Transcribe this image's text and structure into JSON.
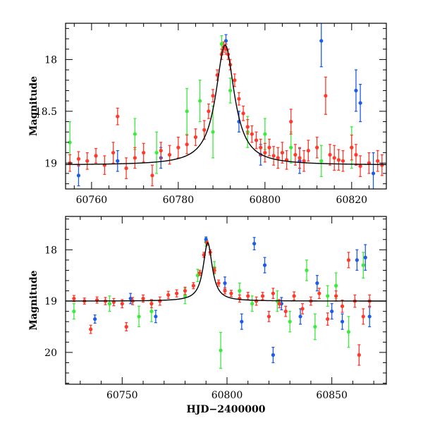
{
  "colors": {
    "red": "#ff3a2a",
    "green": "#3dea3d",
    "blue": "#1d5ce6",
    "model": "#000000"
  },
  "chart_data": [
    {
      "type": "scatter",
      "panel": "top",
      "xlabel": "",
      "ylabel": "Magnitude",
      "xlim": [
        60754,
        60828
      ],
      "ylim": [
        19.25,
        17.65
      ],
      "y_inverted": true,
      "x_ticks": [
        60760,
        60780,
        60800,
        60820
      ],
      "x_tick_labels": [
        "60760",
        "60780",
        "60800",
        "60820"
      ],
      "y_ticks": [
        18,
        18.5,
        19
      ],
      "y_tick_labels": [
        "18",
        "18.5",
        "19"
      ],
      "model": {
        "type": "lorentzian-peak",
        "baseline": 19.02,
        "peak_x": 60790.8,
        "peak_mag": 17.86,
        "width_days": 2.6
      },
      "series": [
        {
          "color": "#ff3a2a",
          "points": [
            [
              60755,
              19.0,
              0.08
            ],
            [
              60757,
              18.96,
              0.07
            ],
            [
              60759,
              18.98,
              0.08
            ],
            [
              60761,
              18.93,
              0.07
            ],
            [
              60763,
              19.02,
              0.09
            ],
            [
              60765,
              18.9,
              0.1
            ],
            [
              60766,
              18.55,
              0.08
            ],
            [
              60768,
              19.05,
              0.1
            ],
            [
              60770,
              18.95,
              0.1
            ],
            [
              60772,
              18.9,
              0.09
            ],
            [
              60774,
              19.12,
              0.1
            ],
            [
              60776,
              18.88,
              0.08
            ],
            [
              60778,
              18.92,
              0.09
            ],
            [
              60780,
              18.85,
              0.1
            ],
            [
              60782,
              18.82,
              0.09
            ],
            [
              60784,
              18.75,
              0.08
            ],
            [
              60786,
              18.68,
              0.09
            ],
            [
              60787,
              18.5,
              0.07
            ],
            [
              60788,
              18.35,
              0.06
            ],
            [
              60789,
              18.15,
              0.05
            ],
            [
              60790,
              17.95,
              0.05
            ],
            [
              60790.5,
              17.88,
              0.05
            ],
            [
              60791,
              17.9,
              0.05
            ],
            [
              60791.5,
              17.95,
              0.05
            ],
            [
              60792,
              18.05,
              0.05
            ],
            [
              60793,
              18.2,
              0.06
            ],
            [
              60794,
              18.38,
              0.06
            ],
            [
              60795,
              18.52,
              0.07
            ],
            [
              60796,
              18.65,
              0.07
            ],
            [
              60797,
              18.72,
              0.08
            ],
            [
              60798,
              18.78,
              0.08
            ],
            [
              60799,
              18.85,
              0.08
            ],
            [
              60800,
              18.9,
              0.09
            ],
            [
              60801,
              18.85,
              0.08
            ],
            [
              60802,
              18.93,
              0.09
            ],
            [
              60803,
              18.95,
              0.1
            ],
            [
              60804,
              18.9,
              0.1
            ],
            [
              60805,
              18.97,
              0.09
            ],
            [
              60806,
              18.6,
              0.12
            ],
            [
              60807,
              18.92,
              0.1
            ],
            [
              60808,
              18.95,
              0.1
            ],
            [
              60809,
              18.98,
              0.1
            ],
            [
              60810,
              18.88,
              0.1
            ],
            [
              60812,
              18.85,
              0.1
            ],
            [
              60814,
              18.35,
              0.18
            ],
            [
              60815,
              18.92,
              0.1
            ],
            [
              60816,
              18.95,
              0.12
            ],
            [
              60817,
              18.97,
              0.1
            ],
            [
              60818,
              18.98,
              0.1
            ],
            [
              60820,
              18.85,
              0.12
            ],
            [
              60821,
              18.92,
              0.1
            ],
            [
              60822,
              19.03,
              0.1
            ],
            [
              60824,
              19.0,
              0.1
            ],
            [
              60826,
              18.98,
              0.1
            ],
            [
              60827,
              19.02,
              0.1
            ]
          ]
        },
        {
          "color": "#3dea3d",
          "points": [
            [
              60755,
              18.8,
              0.2
            ],
            [
              60770,
              18.72,
              0.15
            ],
            [
              60775,
              18.9,
              0.2
            ],
            [
              60782,
              18.5,
              0.22
            ],
            [
              60785,
              18.4,
              0.2
            ],
            [
              60788,
              18.7,
              0.25
            ],
            [
              60790,
              17.85,
              0.08
            ],
            [
              60792,
              18.3,
              0.12
            ],
            [
              60796,
              18.7,
              0.15
            ],
            [
              60800,
              18.72,
              0.15
            ],
            [
              60806,
              18.85,
              0.15
            ],
            [
              60813,
              18.98,
              0.15
            ],
            [
              60820,
              18.85,
              0.2
            ]
          ]
        },
        {
          "color": "#1d5ce6",
          "points": [
            [
              60757,
              19.12,
              0.1
            ],
            [
              60766,
              18.98,
              0.1
            ],
            [
              60776,
              18.95,
              0.1
            ],
            [
              60791,
              17.82,
              0.06
            ],
            [
              60794,
              18.6,
              0.1
            ],
            [
              60799,
              18.92,
              0.1
            ],
            [
              60808,
              18.98,
              0.12
            ],
            [
              60813,
              17.82,
              0.25
            ],
            [
              60821,
              18.3,
              0.2
            ],
            [
              60822,
              18.42,
              0.18
            ],
            [
              60825,
              19.1,
              0.2
            ]
          ]
        }
      ]
    },
    {
      "type": "scatter",
      "panel": "bottom",
      "xlabel": "HJD−2400000",
      "ylabel": "Magnitude",
      "xlim": [
        60723,
        60876
      ],
      "ylim": [
        20.62,
        17.35
      ],
      "y_inverted": true,
      "x_ticks": [
        60750,
        60800,
        60850
      ],
      "x_tick_labels": [
        "60750",
        "60800",
        "60850"
      ],
      "y_ticks": [
        18,
        19,
        20
      ],
      "y_tick_labels": [
        "18",
        "19",
        "20"
      ],
      "model": {
        "type": "lorentzian-peak",
        "baseline": 19.0,
        "peak_x": 60790.8,
        "peak_mag": 17.86,
        "width_days": 2.6
      },
      "series": [
        {
          "color": "#ff3a2a",
          "points": [
            [
              60727,
              18.95,
              0.06
            ],
            [
              60732,
              19.0,
              0.06
            ],
            [
              60735,
              19.55,
              0.08
            ],
            [
              60738,
              18.98,
              0.06
            ],
            [
              60742,
              19.0,
              0.07
            ],
            [
              60746,
              19.02,
              0.07
            ],
            [
              60750,
              19.05,
              0.08
            ],
            [
              60752,
              19.5,
              0.08
            ],
            [
              60755,
              19.0,
              0.07
            ],
            [
              60760,
              18.95,
              0.07
            ],
            [
              60764,
              19.05,
              0.08
            ],
            [
              60768,
              19.0,
              0.08
            ],
            [
              60772,
              18.88,
              0.07
            ],
            [
              60776,
              18.85,
              0.07
            ],
            [
              60780,
              18.8,
              0.07
            ],
            [
              60784,
              18.7,
              0.06
            ],
            [
              60787,
              18.45,
              0.05
            ],
            [
              60789,
              18.1,
              0.05
            ],
            [
              60790.5,
              17.87,
              0.04
            ],
            [
              60792,
              18.05,
              0.05
            ],
            [
              60794,
              18.4,
              0.05
            ],
            [
              60796,
              18.65,
              0.06
            ],
            [
              60799,
              18.8,
              0.06
            ],
            [
              60802,
              18.85,
              0.06
            ],
            [
              60806,
              18.95,
              0.07
            ],
            [
              60810,
              18.9,
              0.07
            ],
            [
              60814,
              19.0,
              0.08
            ],
            [
              60817,
              18.9,
              0.07
            ],
            [
              60820,
              19.3,
              0.1
            ],
            [
              60822,
              18.85,
              0.1
            ],
            [
              60825,
              19.05,
              0.08
            ],
            [
              60828,
              19.2,
              0.1
            ],
            [
              60832,
              18.9,
              0.08
            ],
            [
              60836,
              19.15,
              0.1
            ],
            [
              60840,
              19.0,
              0.08
            ],
            [
              60844,
              18.85,
              0.1
            ],
            [
              60848,
              19.35,
              0.12
            ],
            [
              60852,
              18.9,
              0.1
            ],
            [
              60855,
              19.1,
              0.12
            ],
            [
              60858,
              18.2,
              0.15
            ],
            [
              60861,
              19.0,
              0.12
            ],
            [
              60863,
              20.05,
              0.2
            ],
            [
              60865,
              19.3,
              0.15
            ],
            [
              60868,
              19.0,
              0.12
            ]
          ]
        },
        {
          "color": "#3dea3d",
          "points": [
            [
              60727,
              19.2,
              0.15
            ],
            [
              60744,
              19.05,
              0.15
            ],
            [
              60758,
              19.3,
              0.2
            ],
            [
              60764,
              19.2,
              0.2
            ],
            [
              60780,
              18.9,
              0.15
            ],
            [
              60786,
              18.5,
              0.12
            ],
            [
              60790,
              17.85,
              0.08
            ],
            [
              60794,
              18.35,
              0.12
            ],
            [
              60797,
              19.96,
              0.35
            ],
            [
              60806,
              18.8,
              0.15
            ],
            [
              60812,
              19.05,
              0.15
            ],
            [
              60824,
              19.0,
              0.2
            ],
            [
              60830,
              19.4,
              0.2
            ],
            [
              60838,
              18.4,
              0.2
            ],
            [
              60842,
              19.5,
              0.25
            ],
            [
              60848,
              18.9,
              0.2
            ],
            [
              60852,
              18.7,
              0.25
            ],
            [
              60858,
              19.6,
              0.3
            ],
            [
              60865,
              18.3,
              0.25
            ]
          ]
        },
        {
          "color": "#1d5ce6",
          "points": [
            [
              60737,
              19.35,
              0.08
            ],
            [
              60754,
              18.95,
              0.1
            ],
            [
              60766,
              19.3,
              0.12
            ],
            [
              60790,
              17.8,
              0.05
            ],
            [
              60799,
              18.65,
              0.12
            ],
            [
              60807,
              19.4,
              0.15
            ],
            [
              60813,
              17.88,
              0.12
            ],
            [
              60818,
              18.3,
              0.15
            ],
            [
              60822,
              20.05,
              0.15
            ],
            [
              60826,
              19.05,
              0.12
            ],
            [
              60835,
              19.3,
              0.15
            ],
            [
              60843,
              18.65,
              0.15
            ],
            [
              60850,
              19.2,
              0.15
            ],
            [
              60855,
              19.4,
              0.15
            ],
            [
              60862,
              18.2,
              0.2
            ],
            [
              60866,
              18.15,
              0.25
            ],
            [
              60868,
              19.3,
              0.2
            ]
          ]
        }
      ]
    }
  ]
}
